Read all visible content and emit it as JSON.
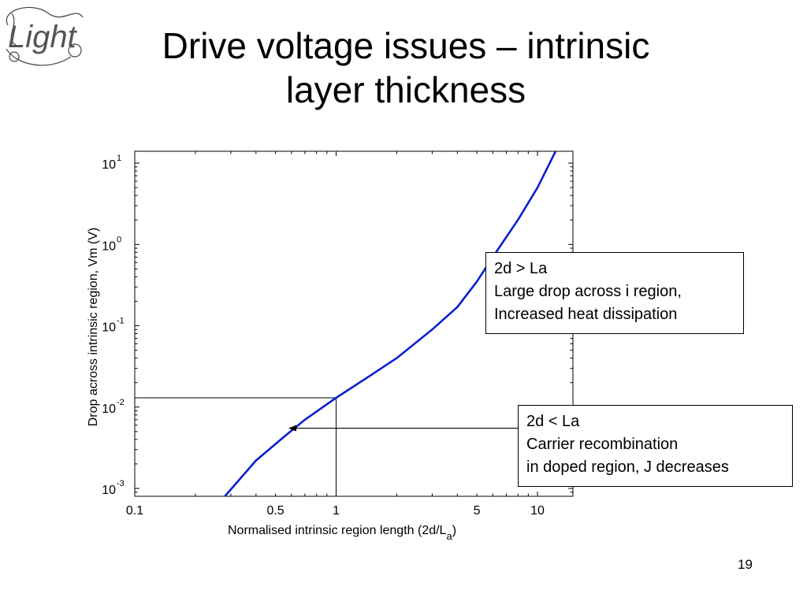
{
  "slide": {
    "title_lines": [
      "Drive voltage issues – intrinsic",
      "layer thickness"
    ],
    "slide_number": "19",
    "logo": "Light"
  },
  "callouts": {
    "high": {
      "lines": [
        "2d > La",
        "Large drop across i region,",
        "Increased heat dissipation"
      ]
    },
    "low": {
      "lines": [
        "2d < La",
        "Carrier recombination",
        "in doped region, J decreases"
      ]
    }
  },
  "chart_data": {
    "type": "line",
    "title": "",
    "xlabel": "Normalised intrinsic region length (2d/L",
    "xlabel_sub": "a",
    "xlabel_close": ")",
    "ylabel": "Drop across intrinsic region, Vm (V)",
    "x_scale": "log",
    "y_scale": "log",
    "xlim": [
      0.1,
      15
    ],
    "ylim": [
      0.0008,
      14
    ],
    "x_ticks": [
      {
        "value": 0.1,
        "label": "0.1"
      },
      {
        "value": 0.5,
        "label": "0.5"
      },
      {
        "value": 1,
        "label": "1"
      },
      {
        "value": 5,
        "label": "5"
      },
      {
        "value": 10,
        "label": "10"
      }
    ],
    "y_ticks": [
      {
        "value": 0.001,
        "base": "10",
        "exp": "-3"
      },
      {
        "value": 0.01,
        "base": "10",
        "exp": "-2"
      },
      {
        "value": 0.1,
        "base": "10",
        "exp": "-1"
      },
      {
        "value": 1,
        "base": "10",
        "exp": "0"
      },
      {
        "value": 10,
        "base": "10",
        "exp": "1"
      }
    ],
    "series": [
      {
        "color": "#0a1fd0",
        "x": [
          0.28,
          0.4,
          0.55,
          0.7,
          1.0,
          1.5,
          2.0,
          3.0,
          4.0,
          5.0,
          6.0,
          8.0,
          10.0,
          12.3
        ],
        "y": [
          0.0008,
          0.0022,
          0.0043,
          0.007,
          0.013,
          0.025,
          0.04,
          0.09,
          0.17,
          0.35,
          0.7,
          2.0,
          5.0,
          14.0
        ]
      }
    ],
    "reference_point": {
      "x": 1.0,
      "y": 0.013
    },
    "arrow": {
      "from_x": 9.0,
      "to_x": 0.58,
      "y": 0.0055
    },
    "grid": false,
    "legend": "none"
  }
}
